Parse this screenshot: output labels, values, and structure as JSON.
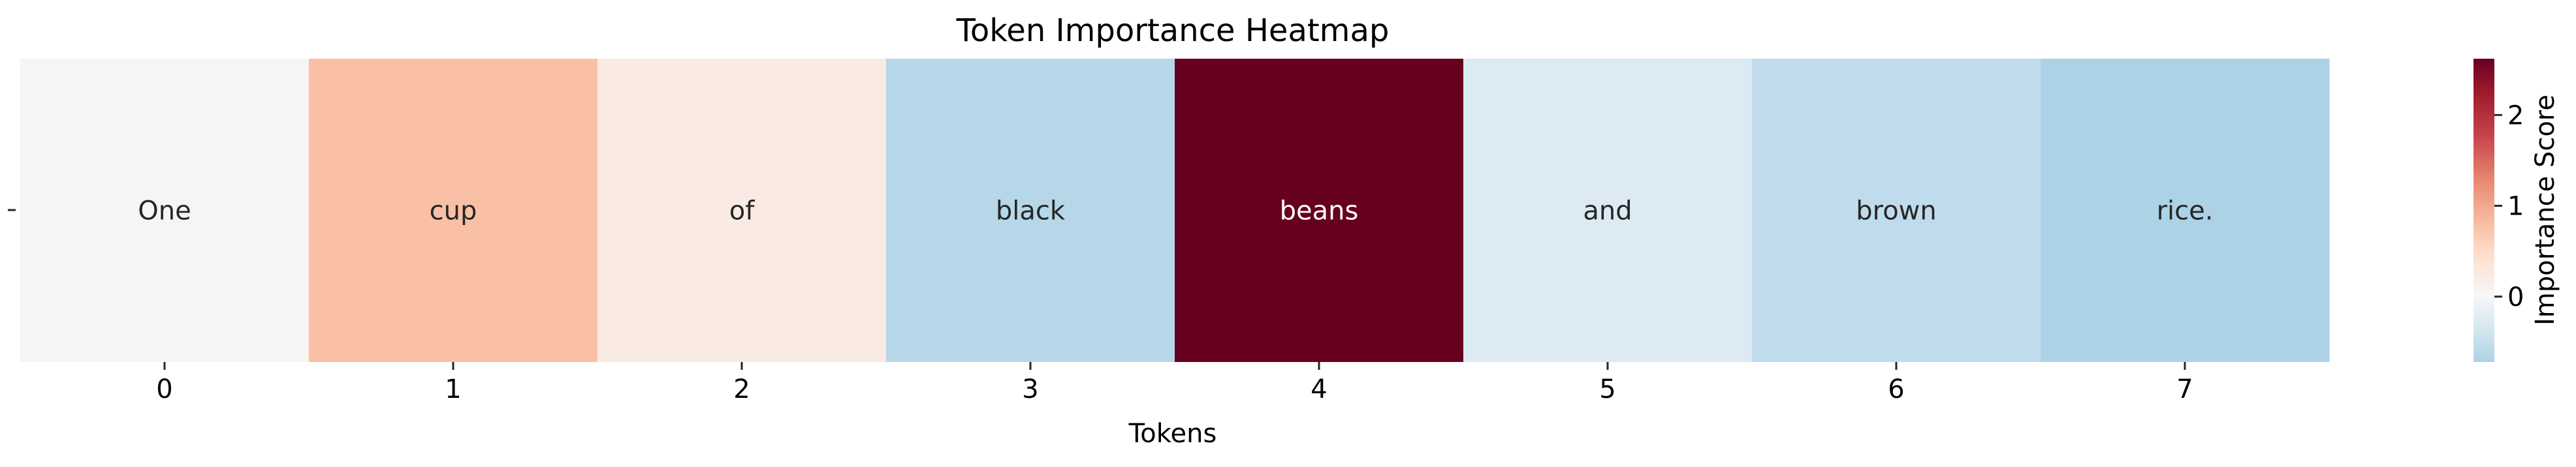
{
  "chart_data": {
    "type": "heatmap",
    "title": "Token Importance Heatmap",
    "xlabel": "Tokens",
    "ylabel": "",
    "x": [
      0,
      1,
      2,
      3,
      4,
      5,
      6,
      7
    ],
    "xticklabels": [
      "0",
      "1",
      "2",
      "3",
      "4",
      "5",
      "6",
      "7"
    ],
    "tokens": [
      "One",
      "cup",
      "of",
      "black",
      "beans",
      "and",
      "brown",
      "rice."
    ],
    "values": [
      0.22,
      1.02,
      0.42,
      -0.45,
      2.62,
      -0.2,
      -0.55,
      -0.72
    ],
    "colorbar": {
      "label": "Importance Score",
      "ticks": [
        "0",
        "1",
        "2"
      ],
      "range": [
        -0.72,
        2.62
      ]
    },
    "colors": {
      "cells": [
        "#f6f5f3",
        "#f9c0a6",
        "#f9ebe3",
        "#b6d7e8",
        "#67001f",
        "#dbeaf3",
        "#c0dcec",
        "#acd2e5"
      ],
      "text_dark": "#262626",
      "text_light": "#ffffff"
    }
  }
}
